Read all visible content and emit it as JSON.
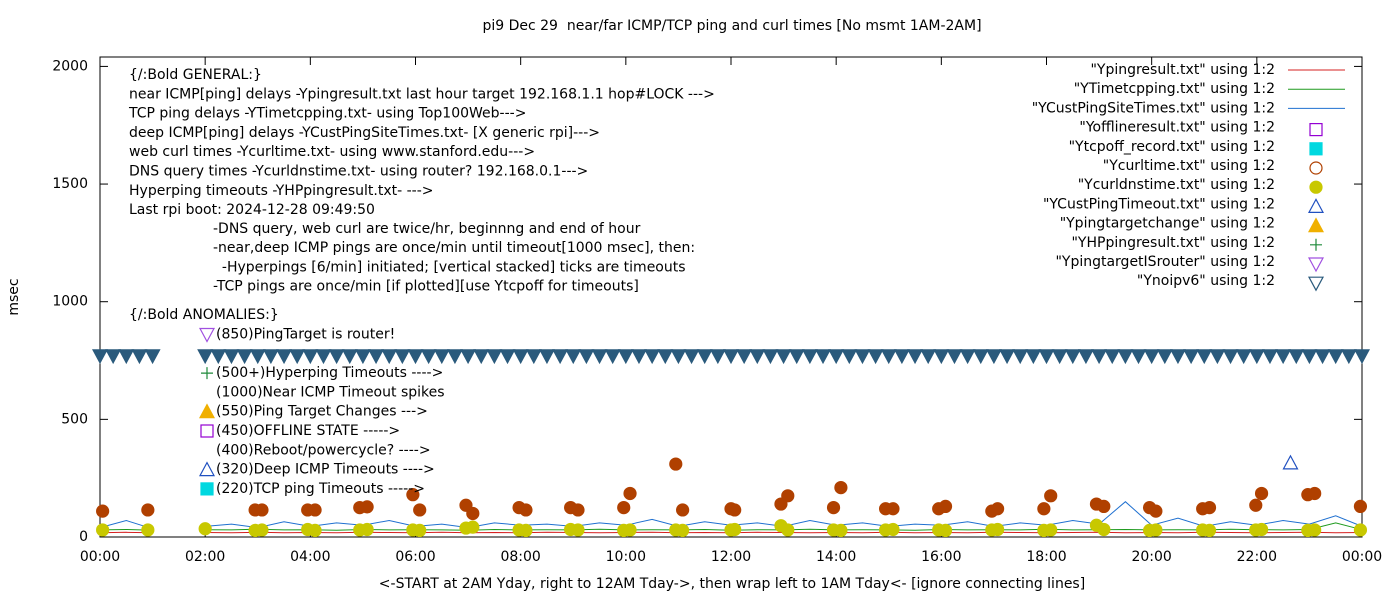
{
  "chart_data": {
    "type": "line",
    "title": "pi9 Dec 29  near/far ICMP/TCP ping and curl times [No msmt 1AM-2AM]",
    "x_label": "<-START at 2AM Yday, right to 12AM Tday->, then wrap left to 1AM Tday<- [ignore connecting lines]",
    "y_label": "msec",
    "xlim": [
      0,
      24
    ],
    "xticks": [
      {
        "value": 0,
        "label": "00:00"
      },
      {
        "value": 2,
        "label": "02:00"
      },
      {
        "value": 4,
        "label": "04:00"
      },
      {
        "value": 6,
        "label": "06:00"
      },
      {
        "value": 8,
        "label": "08:00"
      },
      {
        "value": 10,
        "label": "10:00"
      },
      {
        "value": 12,
        "label": "12:00"
      },
      {
        "value": 14,
        "label": "14:00"
      },
      {
        "value": 16,
        "label": "16:00"
      },
      {
        "value": 18,
        "label": "18:00"
      },
      {
        "value": 20,
        "label": "20:00"
      },
      {
        "value": 22,
        "label": "22:00"
      },
      {
        "value": 24,
        "label": "00:00"
      }
    ],
    "ylim": [
      0,
      2040
    ],
    "yticks": [
      0,
      500,
      1000,
      1500,
      2000
    ],
    "legend": "top-right",
    "general": {
      "heading": "{/:Bold GENERAL:}",
      "lines": [
        "near ICMP[ping] delays -Ypingresult.txt last hour target 192.168.1.1 hop#LOCK --->",
        "TCP ping delays -YTimetcpping.txt- using Top100Web--->",
        "deep ICMP[ping] delays -YCustPingSiteTimes.txt- [X generic rpi]--->",
        "web curl times -Ycurltime.txt- using www.stanford.edu--->",
        "DNS query times -Ycurldnstime.txt- using router? 192.168.0.1--->",
        "Hyperping timeouts -YHPpingresult.txt- --->",
        "Last rpi boot: 2024-12-28 09:49:50"
      ],
      "sublines": [
        "-DNS query, web curl are twice/hr, beginnng and end of hour",
        "-near,deep ICMP pings are once/min until timeout[1000 msec], then:",
        "  -Hyperpings [6/min] initiated; [vertical stacked] ticks are timeouts",
        "-TCP pings are once/min [if plotted][use Ytcpoff for timeouts]"
      ]
    },
    "anomalies": {
      "heading": "{/:Bold ANOMALIES:}",
      "items": [
        "(850)PingTarget is router!",
        "(500+)Hyperping Timeouts ---->",
        "(1000)Near ICMP Timeout spikes",
        "(550)Ping Target Changes --->",
        "(450)OFFLINE STATE ----->",
        "(400)Reboot/powercycle? ---->",
        "(320)Deep ICMP Timeouts ---->",
        "(220)TCP ping Timeouts ----->"
      ]
    },
    "series": [
      {
        "name": "\"Ypingresult.txt\" using 1:2",
        "color": "#d62020",
        "style": "line",
        "x": [
          0,
          0.5,
          1,
          1.5,
          2,
          2.5,
          3,
          3.5,
          4,
          4.5,
          5,
          5.5,
          6,
          6.5,
          7,
          7.5,
          8,
          8.5,
          9,
          9.5,
          10,
          10.5,
          11,
          11.5,
          12,
          12.5,
          13,
          13.5,
          14,
          14.5,
          15,
          15.5,
          16,
          16.5,
          17,
          17.5,
          18,
          18.5,
          19,
          19.5,
          20,
          20.5,
          21,
          21.5,
          22,
          22.5,
          23,
          23.5,
          24
        ],
        "values": [
          18,
          20,
          18,
          null,
          19,
          18,
          20,
          18,
          19,
          18,
          20,
          19,
          18,
          20,
          18,
          19,
          18,
          20,
          19,
          18,
          19,
          20,
          18,
          19,
          18,
          20,
          19,
          18,
          19,
          18,
          20,
          18,
          19,
          18,
          20,
          19,
          18,
          19,
          20,
          18,
          19,
          18,
          20,
          19,
          18,
          19,
          20,
          18,
          19
        ]
      },
      {
        "name": "\"YTimetcpping.txt\" using 1:2",
        "color": "#1e9a1e",
        "style": "line",
        "x": [
          0,
          0.5,
          1,
          1.5,
          2,
          2.5,
          3,
          3.5,
          4,
          4.5,
          5,
          5.5,
          6,
          6.5,
          7,
          7.5,
          8,
          8.5,
          9,
          9.5,
          10,
          10.5,
          11,
          11.5,
          12,
          12.5,
          13,
          13.5,
          14,
          14.5,
          15,
          15.5,
          16,
          16.5,
          17,
          17.5,
          18,
          18.5,
          19,
          19.5,
          20,
          20.5,
          21,
          21.5,
          22,
          22.5,
          23,
          23.5,
          24
        ],
        "values": [
          30,
          32,
          29,
          null,
          31,
          30,
          33,
          30,
          31,
          29,
          32,
          30,
          31,
          30,
          29,
          32,
          30,
          31,
          30,
          33,
          30,
          31,
          30,
          32,
          29,
          31,
          30,
          33,
          30,
          31,
          30,
          29,
          32,
          30,
          31,
          30,
          33,
          30,
          31,
          32,
          30,
          31,
          30,
          33,
          31,
          30,
          32,
          60,
          31
        ]
      },
      {
        "name": "\"YCustPingSiteTimes.txt\" using 1:2",
        "color": "#1f70d0",
        "style": "line",
        "x": [
          0,
          0.5,
          1,
          1.5,
          2,
          2.5,
          3,
          3.5,
          4,
          4.5,
          5,
          5.5,
          6,
          6.5,
          7,
          7.5,
          8,
          8.5,
          9,
          9.5,
          10,
          10.5,
          11,
          11.5,
          12,
          12.5,
          13,
          13.5,
          14,
          14.5,
          15,
          15.5,
          16,
          16.5,
          17,
          17.5,
          18,
          18.5,
          19,
          19.5,
          20,
          20.5,
          21,
          21.5,
          22,
          22.5,
          23,
          23.5,
          24
        ],
        "values": [
          40,
          70,
          35,
          null,
          45,
          55,
          40,
          65,
          45,
          60,
          50,
          70,
          45,
          55,
          40,
          60,
          50,
          55,
          45,
          60,
          50,
          75,
          45,
          65,
          50,
          60,
          45,
          70,
          50,
          60,
          45,
          55,
          50,
          65,
          45,
          60,
          50,
          70,
          55,
          150,
          50,
          80,
          45,
          65,
          50,
          70,
          55,
          90,
          45
        ]
      },
      {
        "name": "\"Yofflineresult.txt\" using 1:2",
        "color": "#9400d3",
        "style": "open-square",
        "x": [],
        "values": []
      },
      {
        "name": "\"Ytcpoff_record.txt\" using 1:2",
        "color": "#00d8e0",
        "style": "filled-square",
        "x": [],
        "values": []
      },
      {
        "name": "\"Ycurltime.txt\" using 1:2",
        "color": "#b04000",
        "style": "open-circle",
        "x": [
          0.05,
          0.91,
          2.95,
          3.08,
          3.95,
          4.09,
          4.94,
          5.08,
          5.95,
          6.08,
          6.96,
          7.09,
          7.97,
          8.1,
          8.95,
          9.09,
          9.96,
          10.08,
          10.95,
          11.08,
          12.0,
          12.07,
          12.95,
          13.08,
          13.95,
          14.09,
          14.94,
          15.08,
          15.95,
          16.08,
          16.96,
          17.07,
          17.95,
          18.08,
          18.95,
          19.09,
          19.96,
          20.08,
          20.97,
          21.1,
          21.98,
          22.09,
          22.97,
          23.1,
          23.97
        ],
        "values": [
          110,
          115,
          115,
          115,
          115,
          115,
          125,
          128,
          180,
          115,
          135,
          100,
          125,
          115,
          125,
          115,
          125,
          185,
          310,
          115,
          120,
          115,
          140,
          175,
          125,
          210,
          120,
          120,
          120,
          130,
          110,
          120,
          120,
          175,
          140,
          130,
          125,
          110,
          120,
          125,
          135,
          185,
          180,
          185,
          130
        ]
      },
      {
        "name": "\"Ycurldnstime.txt\" using 1:2",
        "color": "#c8c800",
        "style": "filled-circle",
        "x": [
          0.05,
          0.91,
          2.0,
          2.95,
          3.08,
          3.95,
          4.09,
          4.94,
          5.08,
          5.95,
          6.08,
          6.96,
          7.09,
          7.97,
          8.1,
          8.95,
          9.09,
          9.96,
          10.08,
          10.95,
          11.08,
          12.0,
          12.07,
          12.95,
          13.08,
          13.95,
          14.09,
          14.94,
          15.08,
          15.95,
          16.08,
          16.96,
          17.07,
          17.95,
          18.08,
          18.95,
          19.09,
          19.96,
          20.08,
          20.97,
          21.1,
          21.98,
          22.09,
          22.97,
          23.1,
          23.97
        ],
        "values": [
          30,
          30,
          35,
          28,
          30,
          32,
          28,
          30,
          32,
          30,
          28,
          38,
          42,
          30,
          28,
          32,
          30,
          28,
          30,
          30,
          28,
          30,
          32,
          48,
          30,
          30,
          28,
          30,
          32,
          30,
          28,
          30,
          32,
          28,
          30,
          50,
          32,
          28,
          30,
          30,
          28,
          30,
          32,
          28,
          30,
          30
        ]
      },
      {
        "name": "\"YCustPingTimeout.txt\" using 1:2",
        "color": "#2050c0",
        "style": "open-triangle",
        "x": [
          22.64
        ],
        "values": [
          315
        ]
      },
      {
        "name": "\"Ypingtargetchange\" using 1:2",
        "color": "#f0b000",
        "style": "filled-triangle",
        "x": [],
        "values": []
      },
      {
        "name": "\"YHPpingresult.txt\" using 1:2",
        "color": "#1e8a3a",
        "style": "plus",
        "x": [],
        "values": []
      },
      {
        "name": "\"YpingtargetISrouter\" using 1:2",
        "color": "#a050e0",
        "style": "open-down-triangle",
        "x": [],
        "values": []
      },
      {
        "name": "\"Ynoipv6\" using 1:2",
        "color": "#2a5a7c",
        "style": "open-down-triangle",
        "x": [
          0,
          0.25,
          0.5,
          0.75,
          1,
          2,
          2.25,
          2.5,
          2.75,
          3,
          3.25,
          3.5,
          3.75,
          4,
          4.25,
          4.5,
          4.75,
          5,
          5.25,
          5.5,
          5.75,
          6,
          6.25,
          6.5,
          6.75,
          7,
          7.25,
          7.5,
          7.75,
          8,
          8.25,
          8.5,
          8.75,
          9,
          9.25,
          9.5,
          9.75,
          10,
          10.25,
          10.5,
          10.75,
          11,
          11.25,
          11.5,
          11.75,
          12,
          12.25,
          12.5,
          12.75,
          13,
          13.25,
          13.5,
          13.75,
          14,
          14.25,
          14.5,
          14.75,
          15,
          15.25,
          15.5,
          15.75,
          16,
          16.25,
          16.5,
          16.75,
          17,
          17.25,
          17.5,
          17.75,
          18,
          18.25,
          18.5,
          18.75,
          19,
          19.25,
          19.5,
          19.75,
          20,
          20.25,
          20.5,
          20.75,
          21,
          21.25,
          21.5,
          21.75,
          22,
          22.25,
          22.5,
          22.75,
          23,
          23.25,
          23.5,
          23.75,
          24
        ],
        "values": [
          770,
          770,
          770,
          770,
          770,
          770,
          770,
          770,
          770,
          770,
          770,
          770,
          770,
          770,
          770,
          770,
          770,
          770,
          770,
          770,
          770,
          770,
          770,
          770,
          770,
          770,
          770,
          770,
          770,
          770,
          770,
          770,
          770,
          770,
          770,
          770,
          770,
          770,
          770,
          770,
          770,
          770,
          770,
          770,
          770,
          770,
          770,
          770,
          770,
          770,
          770,
          770,
          770,
          770,
          770,
          770,
          770,
          770,
          770,
          770,
          770,
          770,
          770,
          770,
          770,
          770,
          770,
          770,
          770,
          770,
          770,
          770,
          770,
          770,
          770,
          770,
          770,
          770,
          770,
          770,
          770,
          770,
          770,
          770,
          770,
          770,
          770,
          770,
          770,
          770,
          770,
          770,
          770,
          770
        ]
      }
    ]
  }
}
